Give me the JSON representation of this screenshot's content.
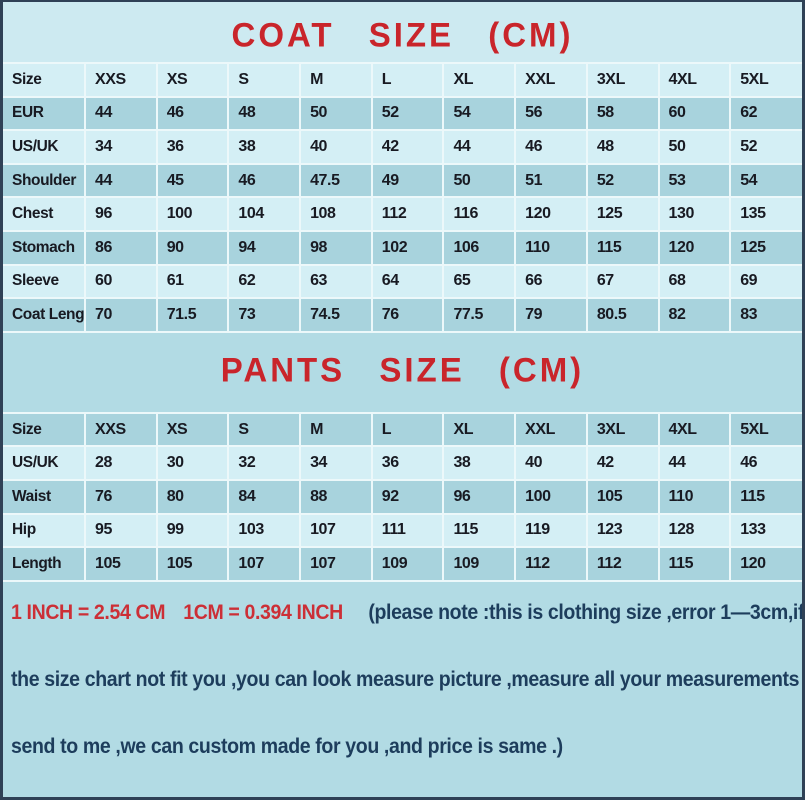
{
  "colors": {
    "background": "#b2dbe4",
    "title_band": "#cdeaf1",
    "row_light": "#d4eff5",
    "row_dark": "#a8d3dd",
    "gridline": "#ecf8fa",
    "title_red": "#c9252b",
    "note_red": "#cc2f36",
    "note_navy": "#1d3d5c",
    "table_text": "#181a22",
    "page_border": "#2f4156"
  },
  "coat": {
    "title": "COAT SIZE (CM)",
    "columns": [
      "Size",
      "XXS",
      "XS",
      "S",
      "M",
      "L",
      "XL",
      "XXL",
      "3XL",
      "4XL",
      "5XL"
    ],
    "rows": [
      {
        "label": "EUR",
        "values": [
          "44",
          "46",
          "48",
          "50",
          "52",
          "54",
          "56",
          "58",
          "60",
          "62"
        ]
      },
      {
        "label": "US/UK",
        "values": [
          "34",
          "36",
          "38",
          "40",
          "42",
          "44",
          "46",
          "48",
          "50",
          "52"
        ]
      },
      {
        "label": "Shoulder",
        "values": [
          "44",
          "45",
          "46",
          "47.5",
          "49",
          "50",
          "51",
          "52",
          "53",
          "54"
        ]
      },
      {
        "label": "Chest",
        "values": [
          "96",
          "100",
          "104",
          "108",
          "112",
          "116",
          "120",
          "125",
          "130",
          "135"
        ]
      },
      {
        "label": "Stomach",
        "values": [
          "86",
          "90",
          "94",
          "98",
          "102",
          "106",
          "110",
          "115",
          "120",
          "125"
        ]
      },
      {
        "label": "Sleeve",
        "values": [
          "60",
          "61",
          "62",
          "63",
          "64",
          "65",
          "66",
          "67",
          "68",
          "69"
        ]
      },
      {
        "label": "Coat Length",
        "values": [
          "70",
          "71.5",
          "73",
          "74.5",
          "76",
          "77.5",
          "79",
          "80.5",
          "82",
          "83"
        ]
      }
    ]
  },
  "pants": {
    "title": "PANTS SIZE (CM)",
    "columns": [
      "Size",
      "XXS",
      "XS",
      "S",
      "M",
      "L",
      "XL",
      "XXL",
      "3XL",
      "4XL",
      "5XL"
    ],
    "rows": [
      {
        "label": "US/UK",
        "values": [
          "28",
          "30",
          "32",
          "34",
          "36",
          "38",
          "40",
          "42",
          "44",
          "46"
        ]
      },
      {
        "label": "Waist",
        "values": [
          "76",
          "80",
          "84",
          "88",
          "92",
          "96",
          "100",
          "105",
          "110",
          "115"
        ]
      },
      {
        "label": "Hip",
        "values": [
          "95",
          "99",
          "103",
          "107",
          "111",
          "115",
          "119",
          "123",
          "128",
          "133"
        ]
      },
      {
        "label": "Length",
        "values": [
          "105",
          "105",
          "107",
          "107",
          "109",
          "109",
          "112",
          "112",
          "115",
          "120"
        ]
      }
    ]
  },
  "notes": {
    "conversion_inch": "1 INCH = 2.54 CM",
    "conversion_cm": "1CM = 0.394 INCH",
    "note_intro": "(please note :this is clothing size ,error 1—3cm,if",
    "note_line2": "the size chart not fit you ,you can look measure picture ,measure all your measurements",
    "note_line3": "send to me ,we can custom made for you ,and price is same .)"
  }
}
